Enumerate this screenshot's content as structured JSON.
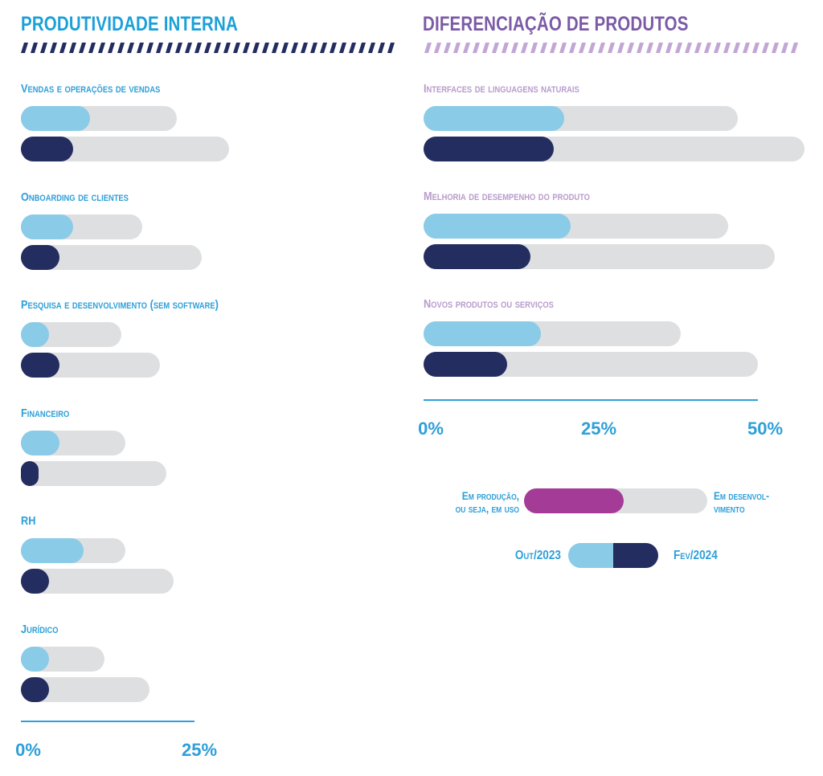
{
  "colors": {
    "left_title": "#1ba0d8",
    "right_title": "#7b5aa6",
    "left_label": "#2e9fd9",
    "right_label": "#b89bcc",
    "stripe_left": "#232d60",
    "stripe_right": "#c2a7d6",
    "oct_2023": "#8acbe8",
    "feb_2024": "#232d60",
    "in_production": "#a43c97",
    "track": "#dedfe1",
    "axis": "#2e9fd9"
  },
  "chart_data": [
    {
      "type": "bar",
      "orientation": "horizontal",
      "title": "PRODUTIVIDADE INTERNA",
      "xlim": [
        0,
        25
      ],
      "ticks": [
        "0%",
        "25%"
      ],
      "categories": [
        {
          "label": "Vendas e operações de vendas",
          "oct_2023": {
            "in_production": 10,
            "in_development": 22.5
          },
          "feb_2024": {
            "in_production": 7.5,
            "in_development": 30
          }
        },
        {
          "label": "Onboarding de clientes",
          "oct_2023": {
            "in_production": 7.5,
            "in_development": 17.5
          },
          "feb_2024": {
            "in_production": 5.5,
            "in_development": 26
          }
        },
        {
          "label": "Pesquisa e desenvolvimento (sem software)",
          "oct_2023": {
            "in_production": 4,
            "in_development": 14.5
          },
          "feb_2024": {
            "in_production": 5.5,
            "in_development": 20
          }
        },
        {
          "label": "Financeiro",
          "oct_2023": {
            "in_production": 5.5,
            "in_development": 15
          },
          "feb_2024": {
            "in_production": 2.5,
            "in_development": 21
          }
        },
        {
          "label": "RH",
          "oct_2023": {
            "in_production": 9,
            "in_development": 15
          },
          "feb_2024": {
            "in_production": 4,
            "in_development": 22
          }
        },
        {
          "label": "Jurídico",
          "oct_2023": {
            "in_production": 4,
            "in_development": 12
          },
          "feb_2024": {
            "in_production": 4,
            "in_development": 18.5
          }
        }
      ]
    },
    {
      "type": "bar",
      "orientation": "horizontal",
      "title": "DIFERENCIAÇÃO DE PRODUTOS",
      "xlim": [
        0,
        50
      ],
      "ticks": [
        "0%",
        "25%",
        "50%"
      ],
      "categories": [
        {
          "label": "Interfaces de linguagens naturais",
          "oct_2023": {
            "in_production": 21,
            "in_development": 47
          },
          "feb_2024": {
            "in_production": 19.5,
            "in_development": 57
          }
        },
        {
          "label": "Melhoria de desempenho do produto",
          "oct_2023": {
            "in_production": 22,
            "in_development": 45.5
          },
          "feb_2024": {
            "in_production": 16,
            "in_development": 52.5
          }
        },
        {
          "label": "Novos produtos ou serviços",
          "oct_2023": {
            "in_production": 17.5,
            "in_development": 38.5
          },
          "feb_2024": {
            "in_production": 12.5,
            "in_development": 50
          }
        }
      ]
    }
  ],
  "legend": {
    "in_production_line1": "Em produção,",
    "in_production_line2": "ou seja, em uso",
    "in_development_line1": "Em desenvol-",
    "in_development_line2": "vimento",
    "oct_2023": "Out/2023",
    "feb_2024": "Fev/2024"
  }
}
